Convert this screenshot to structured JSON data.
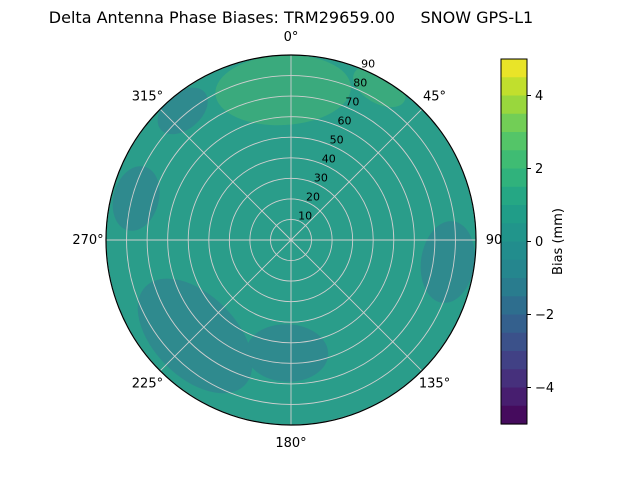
{
  "chart_data": {
    "type": "heatmap",
    "projection": "polar",
    "title": "Delta Antenna Phase Biases: TRM29659.00     SNOW GPS-L1",
    "theta_zero_location": "top",
    "theta_direction": "clockwise",
    "angular_tick_labels": [
      "0°",
      "45°",
      "90",
      "135°",
      "180°",
      "225°",
      "270°",
      "315°"
    ],
    "angular_tick_degrees": [
      0,
      45,
      90,
      135,
      180,
      225,
      270,
      315
    ],
    "radial_tick_labels": [
      "10",
      "20",
      "30",
      "40",
      "50",
      "60",
      "70",
      "80",
      "90"
    ],
    "radial_tick_values": [
      10,
      20,
      30,
      40,
      50,
      60,
      70,
      80,
      90
    ],
    "radial_max": 90,
    "radial_label_angle_deg": 22.5,
    "grid": true,
    "grid_color": "#cfcfcf",
    "colorbar": {
      "label": "Bias (mm)",
      "tick_labels": [
        "4",
        "2",
        "0",
        "−2",
        "−4"
      ],
      "tick_values": [
        4,
        2,
        0,
        -2,
        -4
      ],
      "vmin": -5,
      "vmax": 5,
      "colormap": "viridis",
      "viridis_stops": [
        [
          0.0,
          "#440154"
        ],
        [
          0.1,
          "#482878"
        ],
        [
          0.2,
          "#3e4989"
        ],
        [
          0.3,
          "#31688e"
        ],
        [
          0.4,
          "#26828e"
        ],
        [
          0.5,
          "#21918c"
        ],
        [
          0.6,
          "#1fa187"
        ],
        [
          0.7,
          "#35b779"
        ],
        [
          0.8,
          "#5ec962"
        ],
        [
          0.9,
          "#addc30"
        ],
        [
          1.0,
          "#fde725"
        ]
      ]
    },
    "field": {
      "description": "Phase bias over azimuth (angle) and zenith angle (radius); mostly between 0 and 1 mm",
      "base_bias_mm": 0.25,
      "base_color": "#2a9d8a",
      "levels": {
        "low": {
          "bias_mm": -0.5,
          "color": "#2f8a8e"
        },
        "high": {
          "bias_mm": 1.0,
          "color": "#3aaa7d"
        }
      },
      "regions": [
        {
          "azimuth_deg": 357,
          "zenith": 73,
          "half_tangential": 33,
          "half_radial": 17,
          "level": "high"
        },
        {
          "azimuth_deg": 30,
          "zenith": 86,
          "half_tangential": 14,
          "half_radial": 8,
          "level": "high"
        },
        {
          "azimuth_deg": 225,
          "zenith": 66,
          "half_tangential": 34,
          "half_radial": 20,
          "level": "low"
        },
        {
          "azimuth_deg": 182,
          "zenith": 55,
          "half_tangential": 20,
          "half_radial": 14,
          "level": "low"
        },
        {
          "azimuth_deg": 98,
          "zenith": 77,
          "half_tangential": 20,
          "half_radial": 13,
          "level": "low"
        },
        {
          "azimuth_deg": 285,
          "zenith": 78,
          "half_tangential": 16,
          "half_radial": 11,
          "level": "low"
        },
        {
          "azimuth_deg": 320,
          "zenith": 82,
          "half_tangential": 14,
          "half_radial": 9,
          "level": "low"
        }
      ]
    }
  }
}
